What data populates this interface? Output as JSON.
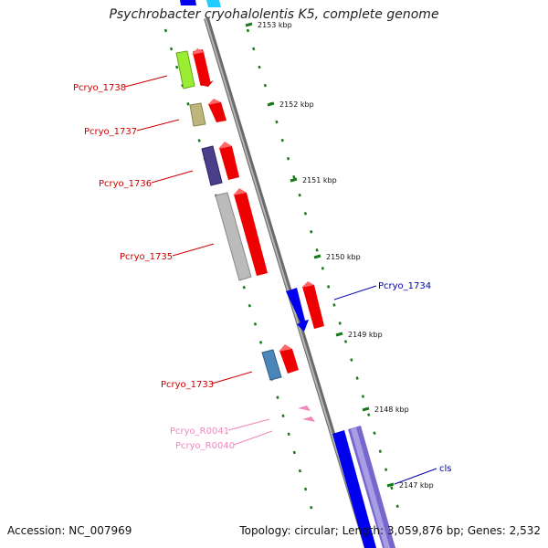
{
  "title": "Psychrobacter cryohalolentis K5, complete genome",
  "footer": {
    "accession": "Accession: NC_007969",
    "summary": "Topology: circular; Length: 3,059,876 bp; Genes: 2,532"
  },
  "ticks": [
    "2153 kbp",
    "2152 kbp",
    "2151 kbp",
    "2150 kbp",
    "2149 kbp",
    "2148 kbp",
    "2147 kbp"
  ],
  "genes": [
    {
      "label": "Pcryo_1738",
      "color": "#cc0000",
      "block_color": "#99ee33"
    },
    {
      "label": "Pcryo_1737",
      "color": "#cc0000",
      "block_color": "#bdb57a"
    },
    {
      "label": "Pcryo_1736",
      "color": "#cc0000",
      "block_color": "#4a3f8a"
    },
    {
      "label": "Pcryo_1735",
      "color": "#cc0000",
      "block_color": "#bbbbbb"
    },
    {
      "label": "Pcryo_1734",
      "color": "#0000aa",
      "block_color": "#0000ee"
    },
    {
      "label": "Pcryo_1733",
      "color": "#cc0000",
      "block_color": "#4a86b8"
    },
    {
      "label": "Pcryo_R0041",
      "color": "#ee88bb",
      "block_color": "#ee88bb"
    },
    {
      "label": "Pcryo_R0040",
      "color": "#ee88bb",
      "block_color": "#ee88bb"
    },
    {
      "label": "cls",
      "color": "#0000aa",
      "block_color": "#0000ee"
    }
  ],
  "colors": {
    "backbone": "#8a8a8a",
    "tick": "#1a7a1a",
    "forward_strand": "#ee0000",
    "reverse_strand": "#0000ee",
    "cls_companion": "#7766cc"
  }
}
